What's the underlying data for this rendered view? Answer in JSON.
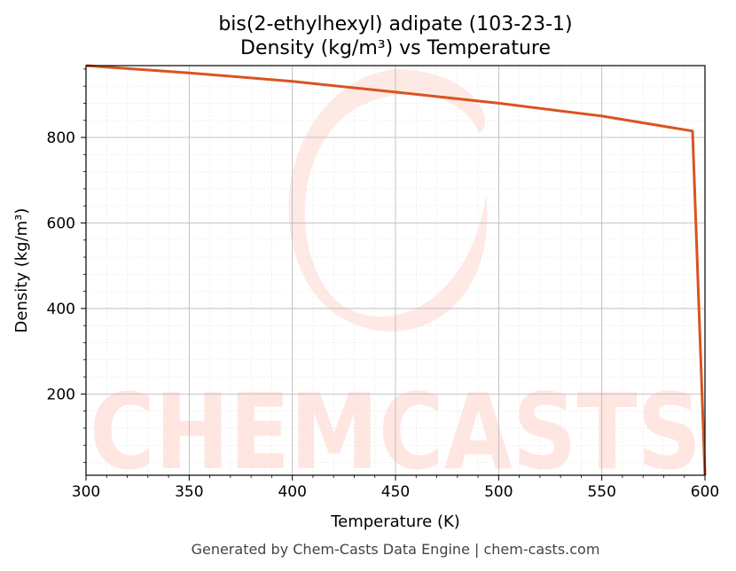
{
  "chart_data": {
    "type": "line",
    "title": "bis(2-ethylhexyl) adipate (103-23-1)",
    "subtitle": "Density (kg/m³) vs Temperature",
    "xlabel": "Temperature (K)",
    "ylabel": "Density (kg/m³)",
    "xlim": [
      300,
      600
    ],
    "ylim": [
      10,
      968
    ],
    "xticks": [
      300,
      350,
      400,
      450,
      500,
      550,
      600
    ],
    "yticks": [
      200,
      400,
      600,
      800
    ],
    "grid": true,
    "series": [
      {
        "name": "",
        "color": "#d9541f",
        "x": [
          300,
          350,
          400,
          450,
          500,
          550,
          594,
          600
        ],
        "y": [
          968,
          951,
          931,
          906,
          880,
          850,
          815,
          10
        ]
      }
    ]
  },
  "watermark": {
    "text": "CHEMCASTS",
    "color": "#ff6b4a"
  },
  "footer": "Generated by Chem-Casts Data Engine | chem-casts.com"
}
